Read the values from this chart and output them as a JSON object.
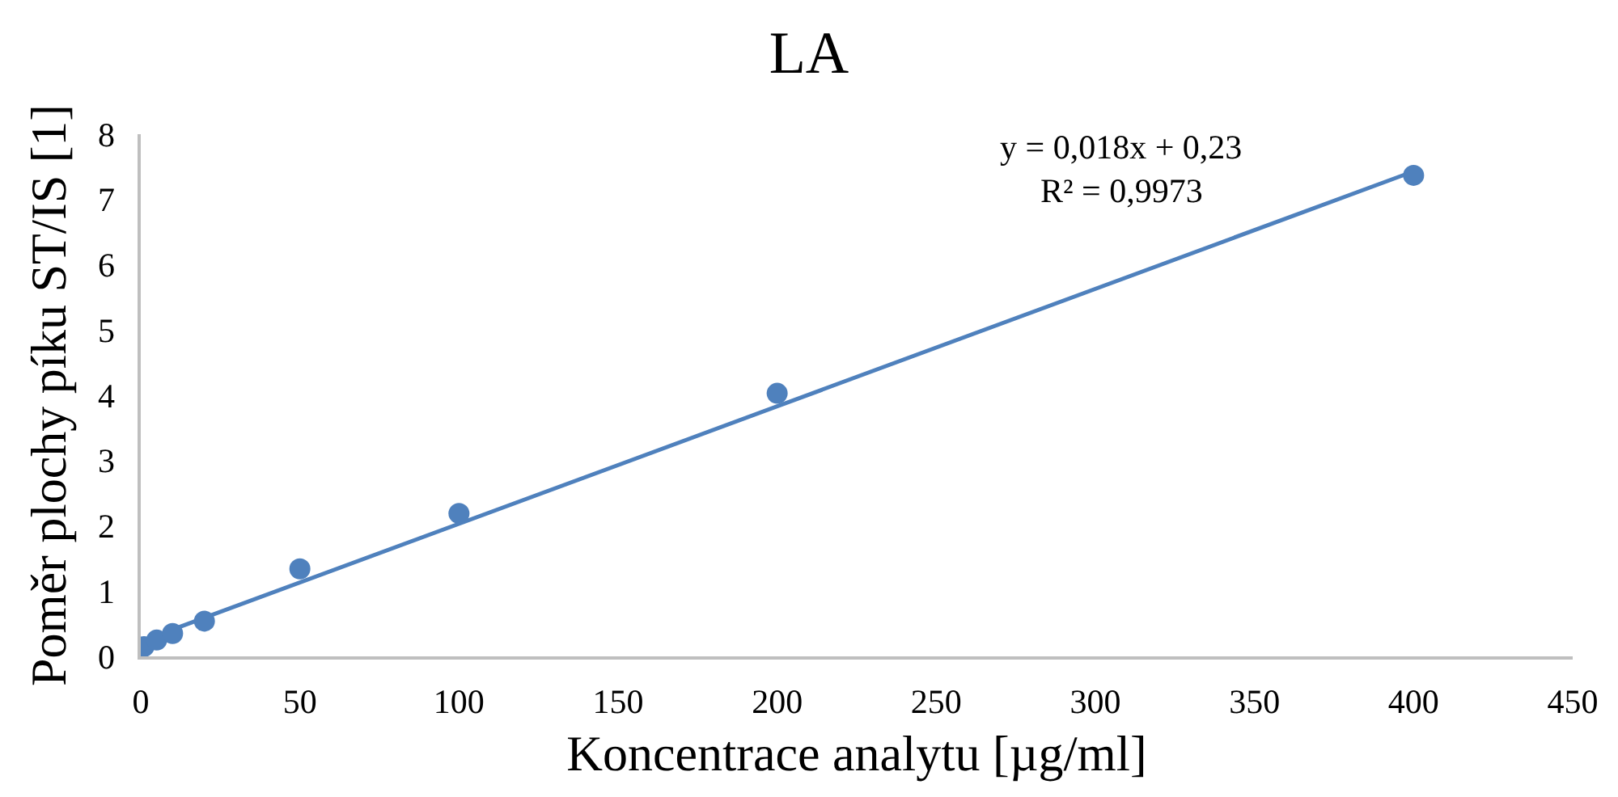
{
  "chart_data": {
    "type": "scatter",
    "title": "LA",
    "xlabel": "Koncentrace analytu [µg/ml]",
    "ylabel": "Poměr plochy píku ST/IS [1]",
    "x": [
      1,
      5,
      10,
      20,
      50,
      100,
      200,
      400
    ],
    "series": [
      {
        "color": "#4f81bd",
        "marker": "circle",
        "values": [
          0.15,
          0.25,
          0.35,
          0.54,
          1.34,
          2.19,
          4.03,
          7.37
        ]
      },
      {
        "type": "line",
        "color": "#4f81bd",
        "marker": "none",
        "x": [
          1,
          400
        ],
        "values": [
          0.25,
          7.43
        ]
      }
    ],
    "xlim": [
      0,
      450
    ],
    "xticks": [
      0,
      50,
      100,
      150,
      200,
      250,
      300,
      350,
      400,
      450
    ],
    "ylim": [
      0,
      8
    ],
    "yticks": [
      0,
      1,
      2,
      3,
      4,
      5,
      6,
      7,
      8
    ],
    "annotations": [
      "y = 0,018x + 0,23",
      "R² = 0,9973"
    ],
    "line_style": "solid"
  }
}
